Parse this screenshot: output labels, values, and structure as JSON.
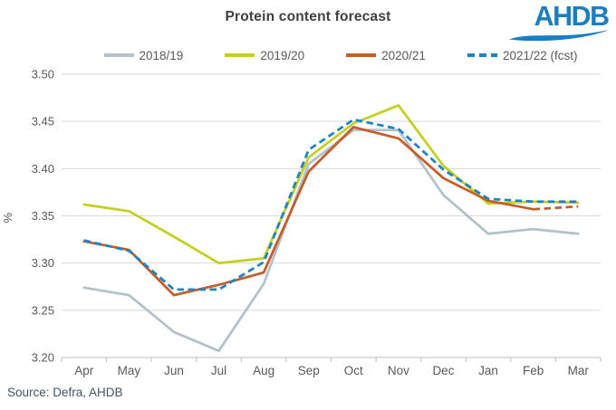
{
  "header": {
    "logo_text": "AHDB"
  },
  "footer": {
    "source": "Source: Defra, AHDB"
  },
  "colors": {
    "title": "#3f3f3f",
    "grid": "#d9d9d9",
    "axis": "#bfbfbf",
    "tick_label": "#595959",
    "source_text": "#44546a",
    "logo_blue": "#1b7ec2"
  },
  "chart_data": {
    "type": "line",
    "title": "Protein content forecast",
    "xlabel": "",
    "ylabel": "%",
    "ylim": [
      3.2,
      3.5
    ],
    "ytick_step": 0.05,
    "grid": true,
    "legend_position": "top",
    "categories": [
      "Apr",
      "May",
      "Jun",
      "Jul",
      "Aug",
      "Sep",
      "Oct",
      "Nov",
      "Dec",
      "Jan",
      "Feb",
      "Mar"
    ],
    "series": [
      {
        "name": "2018/19",
        "color": "#b3c2ca",
        "style": "solid",
        "values": [
          3.274,
          3.266,
          3.227,
          3.207,
          3.278,
          3.405,
          3.441,
          3.441,
          3.372,
          3.331,
          3.336,
          3.331
        ]
      },
      {
        "name": "2019/20",
        "color": "#c3d021",
        "style": "solid",
        "values": [
          3.362,
          3.355,
          3.328,
          3.3,
          3.305,
          3.412,
          3.448,
          3.467,
          3.403,
          3.363,
          3.365,
          3.364
        ]
      },
      {
        "name": "2020/21",
        "color": "#c65d28",
        "style": "solid",
        "dash_from_index": 10,
        "values": [
          3.323,
          3.314,
          3.266,
          3.277,
          3.29,
          3.397,
          3.444,
          3.432,
          3.39,
          3.366,
          3.357,
          3.36
        ]
      },
      {
        "name": "2021/22 (fcst)",
        "color": "#1e83c5",
        "style": "dashed",
        "values": [
          3.324,
          3.313,
          3.272,
          3.272,
          3.301,
          3.42,
          3.452,
          3.442,
          3.399,
          3.368,
          3.365,
          3.365
        ]
      }
    ]
  }
}
